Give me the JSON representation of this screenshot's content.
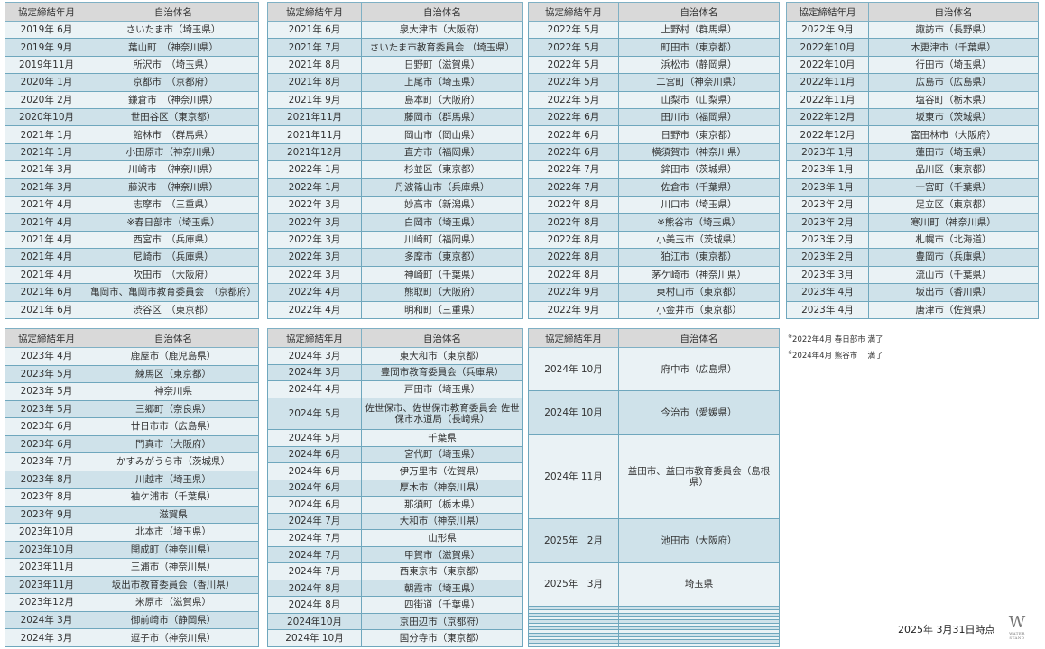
{
  "headers": {
    "date": "協定締結年月",
    "name": "自治体名"
  },
  "tables": [
    {
      "rows": [
        [
          "2019年 6月",
          "さいたま市（埼玉県）"
        ],
        [
          "2019年 9月",
          "葉山町　（神奈川県）"
        ],
        [
          "2019年11月",
          "所沢市　（埼玉県）"
        ],
        [
          "2020年 1月",
          "京都市　（京都府）"
        ],
        [
          "2020年 2月",
          "鎌倉市　（神奈川県）"
        ],
        [
          "2020年10月",
          "世田谷区（東京都）"
        ],
        [
          "2021年 1月",
          "館林市　（群馬県）"
        ],
        [
          "2021年 1月",
          "小田原市（神奈川県）"
        ],
        [
          "2021年 3月",
          "川崎市　（神奈川県）"
        ],
        [
          "2021年 3月",
          "藤沢市　（神奈川県）"
        ],
        [
          "2021年 4月",
          "志摩市　（三重県）"
        ],
        [
          "2021年 4月",
          "※春日部市（埼玉県）"
        ],
        [
          "2021年 4月",
          "西宮市　（兵庫県）"
        ],
        [
          "2021年 4月",
          "尼崎市　（兵庫県）"
        ],
        [
          "2021年 4月",
          "吹田市　（大阪府）"
        ],
        [
          "2021年 6月",
          "亀岡市、亀岡市教育委員会　（京都府）"
        ],
        [
          "2021年 6月",
          "渋谷区　（東京都）"
        ]
      ]
    },
    {
      "rows": [
        [
          "2021年 6月",
          "泉大津市（大阪府）"
        ],
        [
          "2021年 7月",
          "さいたま市教育委員会 （埼玉県）"
        ],
        [
          "2021年 8月",
          "日野町（滋賀県）"
        ],
        [
          "2021年 8月",
          "上尾市（埼玉県）"
        ],
        [
          "2021年 9月",
          "島本町（大阪府）"
        ],
        [
          "2021年11月",
          "藤岡市（群馬県）"
        ],
        [
          "2021年11月",
          "岡山市（岡山県）"
        ],
        [
          "2021年12月",
          "直方市（福岡県）"
        ],
        [
          "2022年 1月",
          "杉並区（東京都）"
        ],
        [
          "2022年 1月",
          "丹波篠山市（兵庫県）"
        ],
        [
          "2022年 3月",
          "妙高市（新潟県）"
        ],
        [
          "2022年 3月",
          "白岡市（埼玉県）"
        ],
        [
          "2022年 3月",
          "川崎町（福岡県）"
        ],
        [
          "2022年 3月",
          "多摩市（東京都）"
        ],
        [
          "2022年 3月",
          "神崎町（千葉県）"
        ],
        [
          "2022年 4月",
          "熊取町（大阪府）"
        ],
        [
          "2022年 4月",
          "明和町（三重県）"
        ]
      ]
    },
    {
      "rows": [
        [
          "2022年 5月",
          "上野村（群馬県）"
        ],
        [
          "2022年 5月",
          "町田市（東京都）"
        ],
        [
          "2022年 5月",
          "浜松市（静岡県）"
        ],
        [
          "2022年 5月",
          "二宮町（神奈川県）"
        ],
        [
          "2022年 5月",
          "山梨市（山梨県）"
        ],
        [
          "2022年 6月",
          "田川市（福岡県）"
        ],
        [
          "2022年 6月",
          "日野市（東京都）"
        ],
        [
          "2022年 6月",
          "横須賀市（神奈川県）"
        ],
        [
          "2022年 7月",
          "鉾田市（茨城県）"
        ],
        [
          "2022年 7月",
          "佐倉市（千葉県）"
        ],
        [
          "2022年 8月",
          "川口市（埼玉県）"
        ],
        [
          "2022年 8月",
          "※熊谷市（埼玉県）"
        ],
        [
          "2022年 8月",
          "小美玉市（茨城県）"
        ],
        [
          "2022年 8月",
          "狛江市（東京都）"
        ],
        [
          "2022年 8月",
          "茅ケ崎市（神奈川県）"
        ],
        [
          "2022年 9月",
          "東村山市（東京都）"
        ],
        [
          "2022年 9月",
          "小金井市（東京都）"
        ]
      ]
    },
    {
      "rows": [
        [
          "2022年 9月",
          "諏訪市（長野県）"
        ],
        [
          "2022年10月",
          "木更津市（千葉県）"
        ],
        [
          "2022年10月",
          "行田市（埼玉県）"
        ],
        [
          "2022年11月",
          "広島市（広島県）"
        ],
        [
          "2022年11月",
          "塩谷町（栃木県）"
        ],
        [
          "2022年12月",
          "坂東市（茨城県）"
        ],
        [
          "2022年12月",
          "富田林市（大阪府）"
        ],
        [
          "2023年 1月",
          "蓮田市（埼玉県）"
        ],
        [
          "2023年 1月",
          "品川区（東京都）"
        ],
        [
          "2023年 1月",
          "一宮町（千葉県）"
        ],
        [
          "2023年 2月",
          "足立区（東京都）"
        ],
        [
          "2023年 2月",
          "寒川町（神奈川県）"
        ],
        [
          "2023年 2月",
          "札幌市（北海道）"
        ],
        [
          "2023年 2月",
          "豊岡市（兵庫県）"
        ],
        [
          "2023年 3月",
          "流山市（千葉県）"
        ],
        [
          "2023年 4月",
          "坂出市（香川県）"
        ],
        [
          "2023年 4月",
          "唐津市（佐賀県）"
        ]
      ]
    },
    {
      "rows": [
        [
          "2023年 4月",
          "鹿屋市（鹿児島県）"
        ],
        [
          "2023年 5月",
          "練馬区（東京都）"
        ],
        [
          "2023年 5月",
          "神奈川県"
        ],
        [
          "2023年 5月",
          "三郷町（奈良県）"
        ],
        [
          "2023年 6月",
          "廿日市市（広島県）"
        ],
        [
          "2023年 6月",
          "門真市（大阪府）"
        ],
        [
          "2023年 7月",
          "かすみがうら市（茨城県）"
        ],
        [
          "2023年 8月",
          "川越市（埼玉県）"
        ],
        [
          "2023年 8月",
          "袖ケ浦市（千葉県）"
        ],
        [
          "2023年 9月",
          "滋賀県"
        ],
        [
          "2023年10月",
          "北本市（埼玉県）"
        ],
        [
          "2023年10月",
          "開成町（神奈川県）"
        ],
        [
          "2023年11月",
          "三浦市（神奈川県）"
        ],
        [
          "2023年11月",
          "坂出市教育委員会（香川県）"
        ],
        [
          "2023年12月",
          "米原市（滋賀県）"
        ],
        [
          "2024年 3月",
          "御前崎市（静岡県）"
        ],
        [
          "2024年 3月",
          "逗子市（神奈川県）"
        ]
      ]
    },
    {
      "rows": [
        [
          "2024年 3月",
          "東大和市（東京都）"
        ],
        [
          "2024年 3月",
          "豊岡市教育委員会（兵庫県）"
        ],
        [
          "2024年 4月",
          "戸田市（埼玉県）"
        ],
        [
          "2024年 5月",
          "佐世保市、佐世保市教育委員会 佐世保市水道局（長崎県）"
        ],
        [
          "2024年 5月",
          "千葉県"
        ],
        [
          "2024年 6月",
          "宮代町（埼玉県）"
        ],
        [
          "2024年 6月",
          "伊万里市（佐賀県）"
        ],
        [
          "2024年 6月",
          "厚木市（神奈川県）"
        ],
        [
          "2024年 6月",
          "那須町（栃木県）"
        ],
        [
          "2024年 7月",
          "大和市（神奈川県）"
        ],
        [
          "2024年 7月",
          "山形県"
        ],
        [
          "2024年 7月",
          "甲賀市（滋賀県）"
        ],
        [
          "2024年 7月",
          "西東京市（東京都）"
        ],
        [
          "2024年 8月",
          "朝霞市（埼玉県）"
        ],
        [
          "2024年 8月",
          "四街道（千葉県）"
        ],
        [
          "2024年10月",
          "京田辺市（京都府）"
        ],
        [
          "2024年 10月",
          "国分寺市（東京都）"
        ]
      ]
    },
    {
      "rows": [
        [
          "2024年 10月",
          "府中市（広島県）"
        ],
        [
          "2024年 10月",
          "今治市（愛媛県）"
        ],
        [
          "2024年 11月",
          "益田市、益田市教育委員会（島根県）"
        ],
        [
          "2025年　2月",
          "池田市（大阪府）"
        ],
        [
          "2025年　3月",
          "埼玉県"
        ],
        [
          "",
          ""
        ],
        [
          "",
          ""
        ],
        [
          "",
          ""
        ],
        [
          "",
          ""
        ],
        [
          "",
          ""
        ],
        [
          "",
          ""
        ],
        [
          "",
          ""
        ],
        [
          "",
          ""
        ],
        [
          "",
          ""
        ],
        [
          "",
          ""
        ],
        [
          "",
          ""
        ],
        [
          "",
          ""
        ]
      ]
    }
  ],
  "notes": [
    {
      "mark": "※",
      "text": "2022年4月 春日部市 満了"
    },
    {
      "mark": "※",
      "text": "2024年4月 熊谷市　 満了"
    }
  ],
  "as_of": "2025年 3月31日時点",
  "logo": {
    "letter": "W",
    "sub": "WATER STAND"
  },
  "colors": {
    "header": "#d9d9d9",
    "row_dark": "#cfe2ea",
    "row_light": "#eaf2f5",
    "border": "#6fa7bd"
  }
}
